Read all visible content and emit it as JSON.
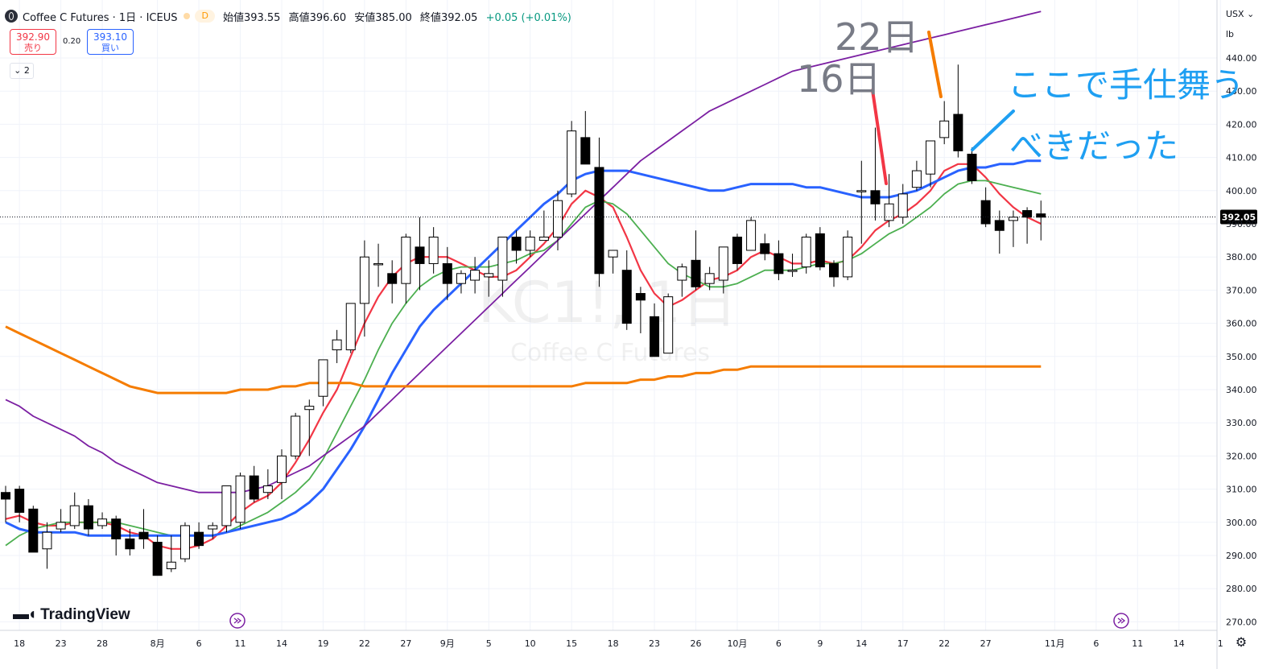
{
  "header": {
    "symbol": "Coffee C Futures · 1日 · ICEUS",
    "market_badge": "D",
    "open_label": "始値",
    "open": "393.55",
    "high_label": "高値",
    "high": "396.60",
    "low_label": "安値",
    "low": "385.00",
    "close_label": "終値",
    "close": "392.05",
    "change": "+0.05 (+0.01%)"
  },
  "trade": {
    "sell_price": "392.90",
    "sell_label": "売り",
    "spread": "0.20",
    "buy_price": "393.10",
    "buy_label": "買い"
  },
  "indicators_toggle": "2",
  "axis": {
    "currency": "USX",
    "unit": "lb"
  },
  "brand": "TradingView",
  "watermark": {
    "main": "KC1!, 1日",
    "sub": "Coffee C Futures"
  },
  "annotations": {
    "day22": "22日",
    "day16": "16日",
    "comment_line1": "ここで手仕舞う",
    "comment_line2": "べきだった"
  },
  "colors": {
    "up_body": "#ffffff",
    "down_body": "#000000",
    "wick": "#000000",
    "ma_red": "#f23645",
    "ma_green": "#4caf50",
    "ma_blue": "#2962ff",
    "ma_purple": "#7b1fa2",
    "ma_orange": "#f57c00",
    "annot_red": "#f23645",
    "annot_orange": "#f57c00",
    "annot_blue": "#1e9ff2",
    "last_price_bg": "#000000"
  },
  "chart_data": {
    "type": "candlestick",
    "last_price": "392.05",
    "y_ticks": [
      440,
      430,
      420,
      410,
      400,
      390,
      380,
      370,
      360,
      350,
      340,
      330,
      320,
      310,
      300,
      290,
      280,
      270
    ],
    "y_tick_labels": [
      "440.00",
      "430.00",
      "420.00",
      "410.00",
      "400.00",
      "390.00",
      "380.00",
      "370.00",
      "360.00",
      "350.00",
      "340.00",
      "330.00",
      "320.00",
      "310.00",
      "300.00",
      "290.00",
      "280.00",
      "270.00"
    ],
    "ylim": [
      267,
      447
    ],
    "x_tick_labels": [
      {
        "label": "18",
        "i": 1
      },
      {
        "label": "23",
        "i": 4
      },
      {
        "label": "28",
        "i": 7
      },
      {
        "label": "8月",
        "i": 11
      },
      {
        "label": "6",
        "i": 14
      },
      {
        "label": "11",
        "i": 17
      },
      {
        "label": "14",
        "i": 20
      },
      {
        "label": "19",
        "i": 23
      },
      {
        "label": "22",
        "i": 26
      },
      {
        "label": "27",
        "i": 29
      },
      {
        "label": "9月",
        "i": 32
      },
      {
        "label": "5",
        "i": 35
      },
      {
        "label": "10",
        "i": 38
      },
      {
        "label": "15",
        "i": 41
      },
      {
        "label": "18",
        "i": 44
      },
      {
        "label": "23",
        "i": 47
      },
      {
        "label": "26",
        "i": 50
      },
      {
        "label": "10月",
        "i": 53
      },
      {
        "label": "6",
        "i": 56
      },
      {
        "label": "9",
        "i": 59
      },
      {
        "label": "14",
        "i": 62
      },
      {
        "label": "17",
        "i": 65
      },
      {
        "label": "22",
        "i": 68
      },
      {
        "label": "27",
        "i": 71
      },
      {
        "label": "11月",
        "i": 76
      },
      {
        "label": "6",
        "i": 79
      },
      {
        "label": "11",
        "i": 82
      },
      {
        "label": "14",
        "i": 85
      },
      {
        "label": "1",
        "i": 88
      }
    ],
    "candles": [
      {
        "o": 309,
        "h": 311,
        "l": 300,
        "c": 307
      },
      {
        "o": 310,
        "h": 311,
        "l": 300,
        "c": 303
      },
      {
        "o": 304,
        "h": 305,
        "l": 291,
        "c": 291
      },
      {
        "o": 292,
        "h": 300,
        "l": 286,
        "c": 297
      },
      {
        "o": 298,
        "h": 304,
        "l": 297,
        "c": 300
      },
      {
        "o": 299,
        "h": 309,
        "l": 298,
        "c": 305
      },
      {
        "o": 305,
        "h": 307,
        "l": 296,
        "c": 298
      },
      {
        "o": 299,
        "h": 303,
        "l": 298,
        "c": 301
      },
      {
        "o": 301,
        "h": 302,
        "l": 290,
        "c": 295
      },
      {
        "o": 295,
        "h": 298,
        "l": 290,
        "c": 292
      },
      {
        "o": 297,
        "h": 304,
        "l": 292,
        "c": 295
      },
      {
        "o": 294,
        "h": 296,
        "l": 284,
        "c": 284
      },
      {
        "o": 286,
        "h": 296,
        "l": 285,
        "c": 288
      },
      {
        "o": 289,
        "h": 300,
        "l": 288,
        "c": 299
      },
      {
        "o": 297,
        "h": 300,
        "l": 292,
        "c": 293
      },
      {
        "o": 298,
        "h": 300,
        "l": 295,
        "c": 299
      },
      {
        "o": 299,
        "h": 311,
        "l": 297,
        "c": 311
      },
      {
        "o": 300,
        "h": 315,
        "l": 298,
        "c": 314
      },
      {
        "o": 314,
        "h": 317,
        "l": 306,
        "c": 307
      },
      {
        "o": 309,
        "h": 316,
        "l": 307,
        "c": 311
      },
      {
        "o": 312,
        "h": 322,
        "l": 307,
        "c": 320
      },
      {
        "o": 320,
        "h": 333,
        "l": 319,
        "c": 332
      },
      {
        "o": 334,
        "h": 337,
        "l": 320,
        "c": 335
      },
      {
        "o": 338,
        "h": 349,
        "l": 335,
        "c": 349
      },
      {
        "o": 352,
        "h": 358,
        "l": 348,
        "c": 355
      },
      {
        "o": 352,
        "h": 366,
        "l": 351,
        "c": 366
      },
      {
        "o": 366,
        "h": 385,
        "l": 356,
        "c": 380
      },
      {
        "o": 378,
        "h": 384,
        "l": 371,
        "c": 378
      },
      {
        "o": 375,
        "h": 379,
        "l": 366,
        "c": 372
      },
      {
        "o": 372,
        "h": 387,
        "l": 366,
        "c": 386
      },
      {
        "o": 383,
        "h": 392,
        "l": 370,
        "c": 378
      },
      {
        "o": 378,
        "h": 389,
        "l": 375,
        "c": 386
      },
      {
        "o": 378,
        "h": 383,
        "l": 367,
        "c": 372
      },
      {
        "o": 372,
        "h": 376,
        "l": 369,
        "c": 375
      },
      {
        "o": 373,
        "h": 380,
        "l": 369,
        "c": 376
      },
      {
        "o": 374,
        "h": 379,
        "l": 368,
        "c": 375
      },
      {
        "o": 373,
        "h": 386,
        "l": 368,
        "c": 386
      },
      {
        "o": 386,
        "h": 388,
        "l": 378,
        "c": 382
      },
      {
        "o": 382,
        "h": 388,
        "l": 380,
        "c": 386
      },
      {
        "o": 385,
        "h": 394,
        "l": 385,
        "c": 386
      },
      {
        "o": 386,
        "h": 400,
        "l": 382,
        "c": 397
      },
      {
        "o": 399,
        "h": 421,
        "l": 398,
        "c": 418
      },
      {
        "o": 416,
        "h": 424,
        "l": 408,
        "c": 408
      },
      {
        "o": 407,
        "h": 416,
        "l": 371,
        "c": 375
      },
      {
        "o": 380,
        "h": 382,
        "l": 375,
        "c": 382
      },
      {
        "o": 376,
        "h": 382,
        "l": 358,
        "c": 360
      },
      {
        "o": 369,
        "h": 371,
        "l": 357,
        "c": 367
      },
      {
        "o": 362,
        "h": 366,
        "l": 350,
        "c": 350
      },
      {
        "o": 351,
        "h": 369,
        "l": 351,
        "c": 368
      },
      {
        "o": 373,
        "h": 378,
        "l": 368,
        "c": 377
      },
      {
        "o": 379,
        "h": 388,
        "l": 370,
        "c": 371
      },
      {
        "o": 372,
        "h": 377,
        "l": 370,
        "c": 375
      },
      {
        "o": 373,
        "h": 383,
        "l": 369,
        "c": 383
      },
      {
        "o": 386,
        "h": 387,
        "l": 376,
        "c": 378
      },
      {
        "o": 382,
        "h": 392,
        "l": 382,
        "c": 391
      },
      {
        "o": 384,
        "h": 387,
        "l": 379,
        "c": 381
      },
      {
        "o": 381,
        "h": 385,
        "l": 373,
        "c": 375
      },
      {
        "o": 376,
        "h": 381,
        "l": 374,
        "c": 376
      },
      {
        "o": 377,
        "h": 387,
        "l": 375,
        "c": 386
      },
      {
        "o": 387,
        "h": 389,
        "l": 376,
        "c": 377
      },
      {
        "o": 378,
        "h": 379,
        "l": 371,
        "c": 374
      },
      {
        "o": 374,
        "h": 388,
        "l": 373,
        "c": 386
      },
      {
        "o": 400,
        "h": 409,
        "l": 384,
        "c": 400
      },
      {
        "o": 400,
        "h": 419,
        "l": 391,
        "c": 396
      },
      {
        "o": 391,
        "h": 405,
        "l": 389,
        "c": 396
      },
      {
        "o": 392,
        "h": 402,
        "l": 390,
        "c": 399
      },
      {
        "o": 401,
        "h": 409,
        "l": 400,
        "c": 406
      },
      {
        "o": 405,
        "h": 415,
        "l": 401,
        "c": 415
      },
      {
        "o": 416,
        "h": 427,
        "l": 414,
        "c": 421
      },
      {
        "o": 423,
        "h": 438,
        "l": 410,
        "c": 412
      },
      {
        "o": 411,
        "h": 413,
        "l": 402,
        "c": 403
      },
      {
        "o": 397,
        "h": 401,
        "l": 389,
        "c": 390
      },
      {
        "o": 391,
        "h": 394,
        "l": 381,
        "c": 388
      },
      {
        "o": 391,
        "h": 394,
        "l": 383,
        "c": 392
      },
      {
        "o": 394,
        "h": 395,
        "l": 384,
        "c": 392
      },
      {
        "o": 393,
        "h": 397,
        "l": 385,
        "c": 392
      }
    ],
    "series": [
      {
        "name": "",
        "color": "#f23645",
        "values": [
          301,
          302,
          300,
          299,
          299,
          300,
          300,
          300,
          299,
          297,
          296,
          293,
          292,
          292,
          293,
          295,
          299,
          303,
          306,
          308,
          312,
          318,
          325,
          333,
          340,
          350,
          360,
          368,
          374,
          378,
          380,
          380,
          380,
          378,
          376,
          374,
          374,
          376,
          380,
          384,
          389,
          396,
          400,
          398,
          395,
          386,
          376,
          369,
          365,
          367,
          370,
          373,
          374,
          376,
          380,
          382,
          380,
          378,
          378,
          379,
          378,
          379,
          383,
          388,
          391,
          393,
          396,
          400,
          406,
          408,
          408,
          404,
          399,
          395,
          392,
          390
        ]
      },
      {
        "name": "",
        "color": "#4caf50",
        "values": [
          293,
          296,
          298,
          299,
          300,
          300,
          300,
          300,
          300,
          299,
          298,
          297,
          296,
          296,
          296,
          296,
          297,
          299,
          301,
          303,
          306,
          309,
          313,
          319,
          327,
          335,
          343,
          352,
          360,
          366,
          371,
          374,
          376,
          377,
          377,
          377,
          378,
          379,
          381,
          382,
          385,
          390,
          395,
          397,
          396,
          393,
          388,
          383,
          378,
          375,
          373,
          371,
          371,
          372,
          374,
          376,
          376,
          376,
          377,
          378,
          378,
          379,
          381,
          384,
          387,
          389,
          392,
          395,
          399,
          402,
          403,
          403,
          402,
          401,
          400,
          399
        ]
      },
      {
        "name": "",
        "color": "#2962ff",
        "values": [
          300,
          298,
          297,
          297,
          297,
          297,
          296,
          296,
          296,
          296,
          296,
          296,
          296,
          296,
          296,
          296,
          297,
          298,
          299,
          300,
          301,
          303,
          306,
          310,
          316,
          322,
          329,
          337,
          345,
          352,
          359,
          364,
          368,
          372,
          376,
          380,
          384,
          388,
          392,
          396,
          399,
          403,
          405,
          406,
          406,
          406,
          405,
          404,
          403,
          402,
          401,
          400,
          400,
          401,
          402,
          402,
          402,
          402,
          401,
          401,
          400,
          399,
          398,
          398,
          398,
          399,
          400,
          402,
          404,
          406,
          407,
          407,
          408,
          408,
          409,
          409
        ]
      },
      {
        "name": "",
        "color": "#7b1fa2",
        "values": [
          337,
          335,
          332,
          330,
          328,
          326,
          323,
          321,
          318,
          316,
          314,
          312,
          311,
          310,
          309,
          309,
          309,
          309,
          310,
          311,
          313,
          315,
          317,
          320,
          323,
          326,
          329,
          333,
          337,
          341,
          345,
          349,
          353,
          357,
          361,
          365,
          369,
          373,
          377,
          381,
          385,
          389,
          393,
          397,
          401,
          405,
          409,
          412,
          415,
          418,
          421,
          424,
          426,
          428,
          430,
          432,
          434,
          436,
          437,
          438,
          439,
          440,
          441,
          442,
          443,
          444,
          445,
          446,
          447,
          448,
          449,
          450,
          451,
          452,
          453,
          454
        ]
      },
      {
        "name": "",
        "color": "#f57c00",
        "values": [
          359,
          357,
          355,
          353,
          351,
          349,
          347,
          345,
          343,
          341,
          340,
          339,
          339,
          339,
          339,
          339,
          339,
          340,
          340,
          340,
          341,
          341,
          342,
          342,
          342,
          342,
          341,
          341,
          341,
          341,
          341,
          341,
          341,
          341,
          341,
          341,
          341,
          341,
          341,
          341,
          341,
          341,
          342,
          342,
          342,
          342,
          343,
          343,
          344,
          344,
          345,
          345,
          346,
          346,
          347,
          347,
          347,
          347,
          347,
          347,
          347,
          347,
          347,
          347,
          347,
          347,
          347,
          347,
          347,
          347,
          347,
          347,
          347,
          347,
          347,
          347
        ]
      }
    ]
  }
}
